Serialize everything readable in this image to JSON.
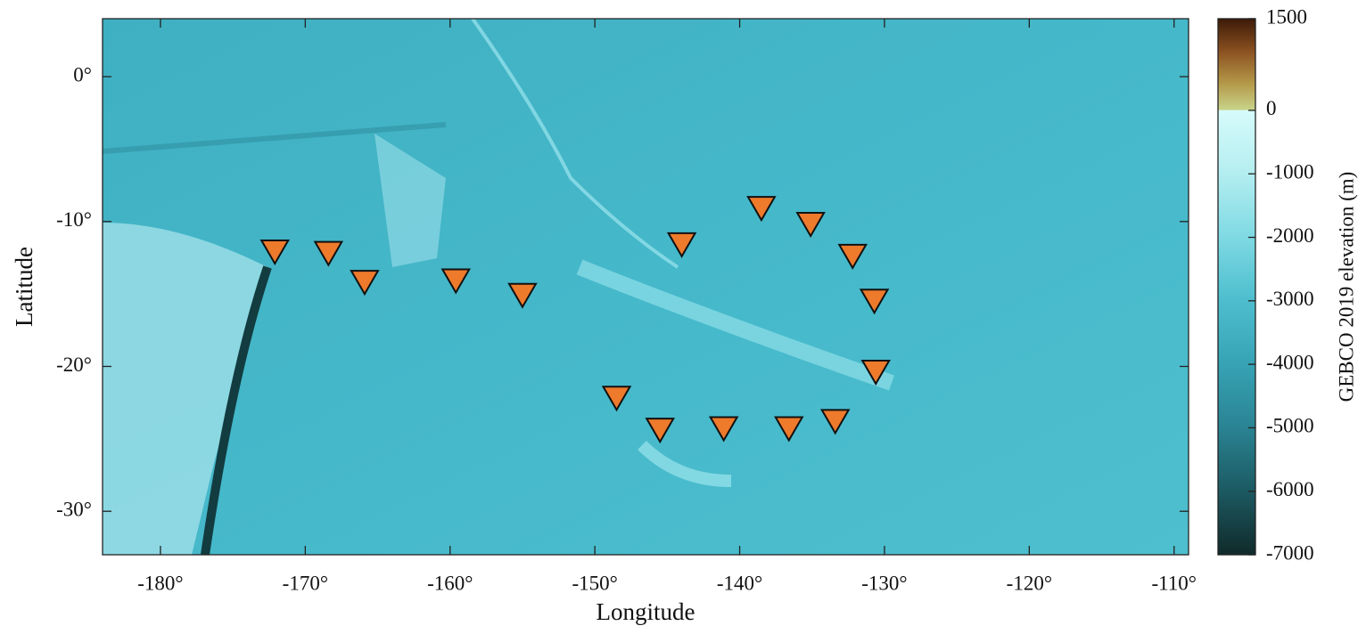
{
  "chart_data": {
    "type": "scatter",
    "xlabel": "Longitude",
    "ylabel": "Latitude",
    "xlim": [
      -184,
      -109
    ],
    "ylim": [
      -33,
      4
    ],
    "xticks": [
      {
        "value": -180,
        "label": "-180°"
      },
      {
        "value": -170,
        "label": "-170°"
      },
      {
        "value": -160,
        "label": "-160°"
      },
      {
        "value": -150,
        "label": "-150°"
      },
      {
        "value": -140,
        "label": "-140°"
      },
      {
        "value": -130,
        "label": "-130°"
      },
      {
        "value": -120,
        "label": "-120°"
      },
      {
        "value": -110,
        "label": "-110°"
      }
    ],
    "yticks": [
      {
        "value": 0,
        "label": "0°"
      },
      {
        "value": -10,
        "label": "-10°"
      },
      {
        "value": -20,
        "label": "-20°"
      },
      {
        "value": -30,
        "label": "-30°"
      }
    ],
    "series": [
      {
        "color": "#ee7a2c",
        "x": [
          -172.1,
          -168.4,
          -165.9,
          -159.6,
          -155.0,
          -144.0,
          -138.5,
          -135.1,
          -132.2,
          -130.7,
          -130.6,
          -148.5,
          -145.5,
          -141.1,
          -136.6,
          -133.4
        ],
        "values": [
          -12.1,
          -12.2,
          -14.2,
          -14.1,
          -15.1,
          -11.6,
          -9.1,
          -10.2,
          -12.4,
          -15.5,
          -20.4,
          -22.2,
          -24.4,
          -24.3,
          -24.3,
          -23.8
        ]
      }
    ],
    "colorbar": {
      "label": "GEBCO 2019 elevation (m)",
      "lim": [
        -7000,
        1500
      ],
      "ticks": [
        1500,
        0,
        -1000,
        -2000,
        -3000,
        -4000,
        -5000,
        -6000,
        -7000
      ]
    }
  }
}
